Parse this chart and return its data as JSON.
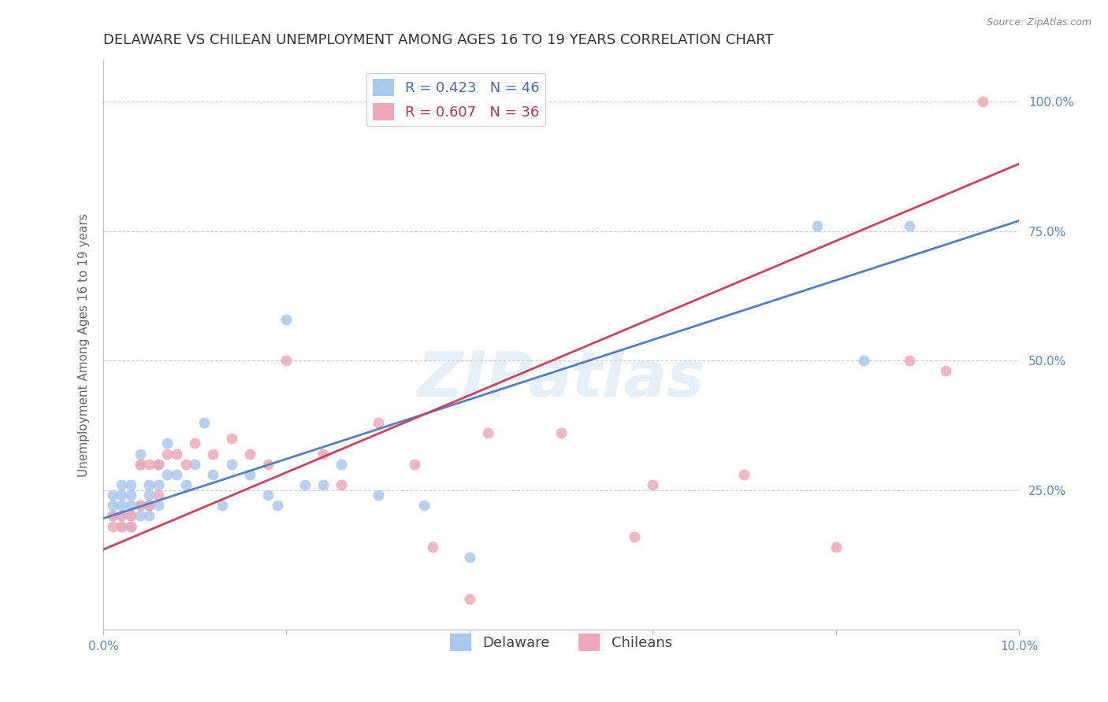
{
  "title": "DELAWARE VS CHILEAN UNEMPLOYMENT AMONG AGES 16 TO 19 YEARS CORRELATION CHART",
  "source": "Source: ZipAtlas.com",
  "ylabel": "Unemployment Among Ages 16 to 19 years",
  "xlim": [
    0.0,
    0.1
  ],
  "ylim": [
    -0.02,
    1.08
  ],
  "xticks": [
    0.0,
    0.02,
    0.04,
    0.06,
    0.08,
    0.1
  ],
  "yticks": [
    0.25,
    0.5,
    0.75,
    1.0
  ],
  "xticklabels": [
    "0.0%",
    "",
    "",
    "",
    "",
    "10.0%"
  ],
  "yticklabels": [
    "25.0%",
    "50.0%",
    "75.0%",
    "100.0%"
  ],
  "background_color": "#ffffff",
  "grid_color": "#cccccc",
  "watermark": "ZIPatlas",
  "delaware_color": "#a8c8f0",
  "chilean_color": "#f0a8b8",
  "delaware_line_color": "#5080c0",
  "chilean_line_color": "#d04060",
  "legend_R_delaware": "R = 0.423",
  "legend_N_delaware": "N = 46",
  "legend_R_chilean": "R = 0.607",
  "legend_N_chilean": "N = 36",
  "delaware_x": [
    0.001,
    0.001,
    0.001,
    0.002,
    0.002,
    0.002,
    0.002,
    0.002,
    0.003,
    0.003,
    0.003,
    0.003,
    0.003,
    0.004,
    0.004,
    0.004,
    0.004,
    0.005,
    0.005,
    0.005,
    0.005,
    0.006,
    0.006,
    0.006,
    0.007,
    0.007,
    0.008,
    0.009,
    0.01,
    0.011,
    0.012,
    0.013,
    0.014,
    0.016,
    0.018,
    0.019,
    0.02,
    0.022,
    0.024,
    0.026,
    0.03,
    0.035,
    0.04,
    0.078,
    0.083,
    0.088
  ],
  "delaware_y": [
    0.2,
    0.22,
    0.24,
    0.18,
    0.2,
    0.22,
    0.24,
    0.26,
    0.18,
    0.2,
    0.22,
    0.24,
    0.26,
    0.2,
    0.22,
    0.3,
    0.32,
    0.2,
    0.22,
    0.24,
    0.26,
    0.22,
    0.26,
    0.3,
    0.28,
    0.34,
    0.28,
    0.26,
    0.3,
    0.38,
    0.28,
    0.22,
    0.3,
    0.28,
    0.24,
    0.22,
    0.58,
    0.26,
    0.26,
    0.3,
    0.24,
    0.22,
    0.12,
    0.76,
    0.5,
    0.76
  ],
  "chilean_x": [
    0.001,
    0.001,
    0.002,
    0.002,
    0.003,
    0.003,
    0.004,
    0.004,
    0.005,
    0.005,
    0.006,
    0.006,
    0.007,
    0.008,
    0.009,
    0.01,
    0.012,
    0.014,
    0.016,
    0.018,
    0.02,
    0.024,
    0.026,
    0.03,
    0.034,
    0.036,
    0.04,
    0.042,
    0.05,
    0.058,
    0.06,
    0.07,
    0.08,
    0.088,
    0.092,
    0.096
  ],
  "chilean_y": [
    0.18,
    0.2,
    0.18,
    0.2,
    0.18,
    0.2,
    0.22,
    0.3,
    0.22,
    0.3,
    0.24,
    0.3,
    0.32,
    0.32,
    0.3,
    0.34,
    0.32,
    0.35,
    0.32,
    0.3,
    0.5,
    0.32,
    0.26,
    0.38,
    0.3,
    0.14,
    0.04,
    0.36,
    0.36,
    0.16,
    0.26,
    0.28,
    0.14,
    0.5,
    0.48,
    1.0
  ],
  "title_fontsize": 13,
  "axis_label_fontsize": 11,
  "tick_fontsize": 11,
  "legend_fontsize": 13,
  "marker_size": 100,
  "line_width": 2.0,
  "delaware_line_x0": 0.0,
  "delaware_line_y0": 0.195,
  "delaware_line_x1": 0.1,
  "delaware_line_y1": 0.77,
  "chilean_line_x0": 0.0,
  "chilean_line_y0": 0.135,
  "chilean_line_x1": 0.1,
  "chilean_line_y1": 0.88
}
